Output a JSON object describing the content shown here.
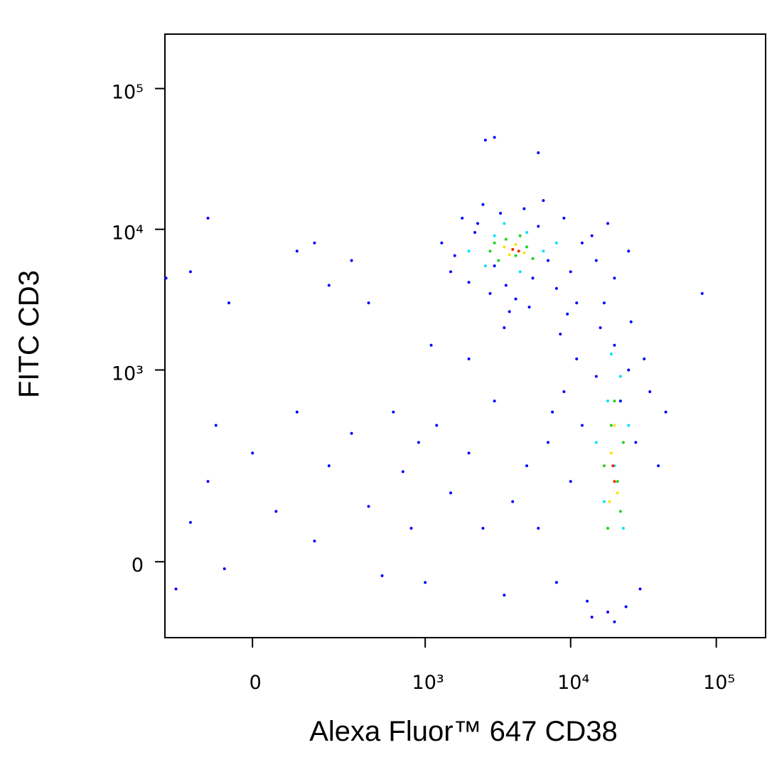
{
  "chart_data": {
    "type": "scatter",
    "xlabel": "Alexa Fluor™ 647 CD38",
    "ylabel": "FITC CD3",
    "xscale": "biexponential",
    "yscale": "biexponential",
    "xlim": [
      -245,
      218000
    ],
    "ylim": [
      -138,
      243600
    ],
    "xticks": [
      0,
      {
        "value": 1000,
        "label": "10³"
      },
      {
        "value": 10000,
        "label": "10⁴"
      },
      {
        "value": 100000,
        "label": "10⁵"
      }
    ],
    "yticks": [
      0,
      {
        "value": 1000,
        "label": "10³"
      },
      {
        "value": 10000,
        "label": "10⁴"
      },
      {
        "value": 100000,
        "label": "10⁵"
      }
    ],
    "series": [
      {
        "color": "#0000ff",
        "x": [
          1300,
          1500,
          1800,
          2000,
          2200,
          2500,
          2800,
          3000,
          3300,
          3600,
          4200,
          4800,
          5500,
          6000,
          7000,
          8000,
          9000,
          10000,
          12000,
          15000,
          18000,
          20000,
          25000,
          1600,
          2300,
          6500,
          11000,
          14000,
          3800,
          5200,
          6000,
          7000,
          8000,
          9000,
          10000,
          11000,
          12000,
          13000,
          15000,
          16000,
          18000,
          20000,
          22000,
          25000,
          28000,
          30000,
          35000,
          40000,
          45000,
          8500,
          9500,
          26000,
          32000,
          14000,
          24000,
          5000,
          4000,
          7500,
          17000,
          20000,
          -150,
          -80,
          -60,
          -100,
          0,
          50,
          100,
          150,
          200,
          300,
          400,
          500,
          600,
          700,
          800,
          900,
          1000,
          1200,
          1500,
          2000,
          2500,
          3000,
          3500,
          -200,
          -50,
          -150,
          100,
          200,
          300,
          150,
          -100,
          -240,
          80000,
          6000,
          3000,
          2600,
          400,
          1100,
          2000,
          3500
        ],
        "values": [
          8000,
          5000,
          12000,
          4200,
          9500,
          15000,
          3500,
          5500,
          13000,
          4000,
          3200,
          14000,
          4500,
          10500,
          6000,
          3800,
          12000,
          5000,
          8000,
          6000,
          11000,
          4500,
          7000,
          6500,
          11000,
          16000,
          3000,
          9000,
          2600,
          2800,
          50,
          300,
          -30,
          700,
          150,
          1200,
          400,
          -60,
          900,
          2000,
          -80,
          1500,
          600,
          1000,
          300,
          -40,
          700,
          200,
          500,
          1800,
          2500,
          2200,
          1200,
          -90,
          -70,
          200,
          100,
          500,
          3000,
          -100,
          60,
          400,
          -10,
          150,
          250,
          80,
          500,
          30,
          200,
          350,
          90,
          -20,
          500,
          180,
          50,
          300,
          -30,
          400,
          120,
          250,
          50,
          600,
          -50,
          -40,
          3000,
          5000,
          7000,
          4000,
          6000,
          8000,
          12000,
          4500,
          3500,
          35000,
          45000,
          43000,
          3000,
          1500,
          1200,
          2000
        ]
      },
      {
        "color": "#00e0ff",
        "x": [
          2000,
          2600,
          3000,
          4500,
          5000,
          6500,
          8000,
          3500,
          15000,
          18000,
          20000,
          22000,
          25000,
          17000,
          23000,
          19000
        ],
        "values": [
          7000,
          5500,
          9000,
          5000,
          9500,
          7000,
          8000,
          11000,
          300,
          600,
          200,
          900,
          400,
          100,
          50,
          1300
        ]
      },
      {
        "color": "#20d020",
        "x": [
          2800,
          3200,
          3600,
          4200,
          5000,
          3000,
          4500,
          5500,
          17000,
          19000,
          21000,
          20000,
          23000,
          18000,
          22000
        ],
        "values": [
          7000,
          6000,
          8500,
          6500,
          7500,
          8000,
          9000,
          6200,
          200,
          400,
          150,
          600,
          300,
          50,
          80
        ]
      },
      {
        "color": "#ffe000",
        "x": [
          3500,
          4200,
          4800,
          3800,
          19000,
          21000,
          20000,
          18500
        ],
        "values": [
          7500,
          7800,
          6800,
          6600,
          250,
          120,
          400,
          100
        ]
      },
      {
        "color": "#ff2000",
        "x": [
          4000,
          4400,
          20000,
          19500
        ],
        "values": [
          7200,
          7000,
          150,
          200
        ]
      }
    ]
  }
}
